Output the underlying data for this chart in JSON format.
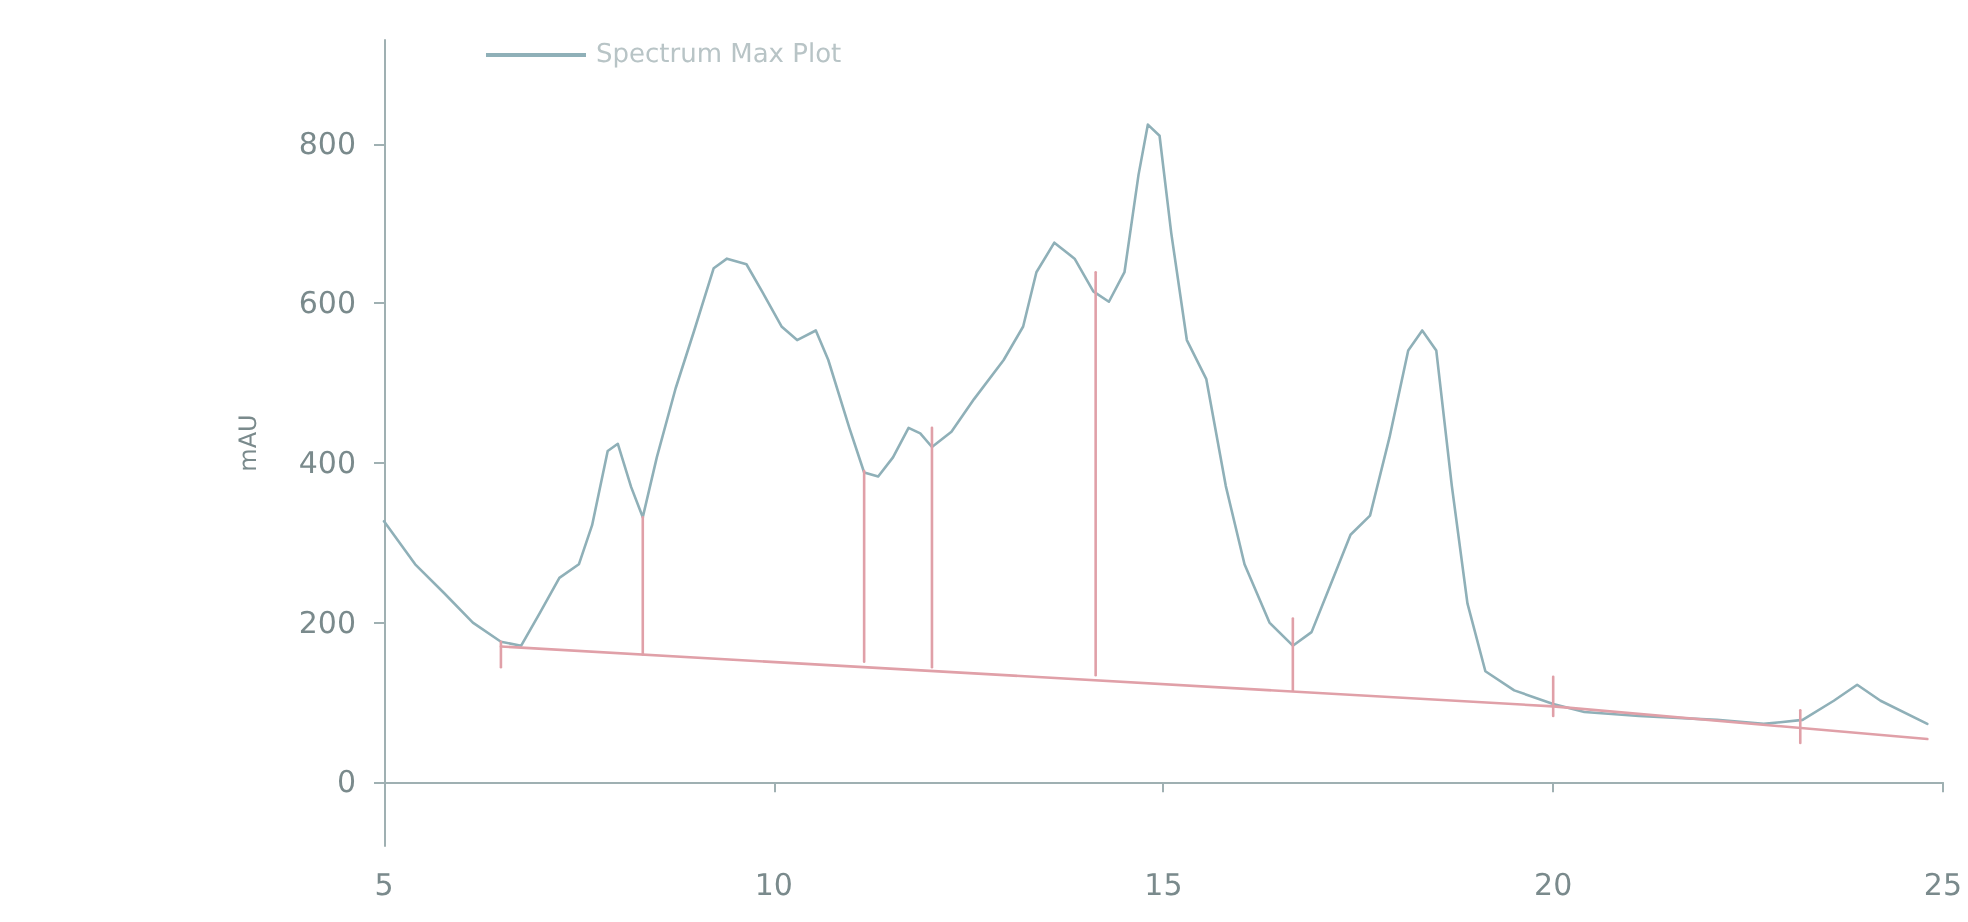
{
  "chart_data": {
    "type": "line",
    "ylabel": "mAU",
    "xlim": [
      5,
      25
    ],
    "xticks": [
      5,
      10,
      15,
      20,
      25
    ],
    "ylim": [
      -80,
      930
    ],
    "yticks": [
      0,
      200,
      400,
      600,
      800
    ],
    "legend": "top",
    "marker": "none",
    "line_style": "solid",
    "series": [
      {
        "name": "Spectrum Max Plot",
        "color": "#8fb0b8",
        "x": [
          5.0,
          5.4,
          5.77,
          6.14,
          6.5,
          6.76,
          7.0,
          7.25,
          7.5,
          7.67,
          7.87,
          8.0,
          8.17,
          8.32,
          8.5,
          8.74,
          8.98,
          9.23,
          9.4,
          9.65,
          9.85,
          10.1,
          10.3,
          10.54,
          10.7,
          10.97,
          11.16,
          11.34,
          11.53,
          11.73,
          11.88,
          12.03,
          12.28,
          12.57,
          12.95,
          13.2,
          13.37,
          13.6,
          13.86,
          14.1,
          14.3,
          14.5,
          14.68,
          14.8,
          14.95,
          15.1,
          15.3,
          15.55,
          15.8,
          16.04,
          16.36,
          16.66,
          16.9,
          17.15,
          17.4,
          17.65,
          17.9,
          18.14,
          18.32,
          18.5,
          18.7,
          18.9,
          19.13,
          19.5,
          20.0,
          20.4,
          21.1,
          22.1,
          22.7,
          23.2,
          23.6,
          23.9,
          24.2,
          24.8
        ],
        "values": [
          327,
          273,
          237,
          200,
          176,
          171,
          212,
          256,
          273,
          322,
          415,
          424,
          370,
          332,
          407,
          493,
          566,
          644,
          656,
          649,
          615,
          571,
          554,
          566,
          529,
          444,
          388,
          383,
          407,
          444,
          437,
          420,
          439,
          480,
          529,
          571,
          639,
          676,
          656,
          615,
          602,
          639,
          761,
          824,
          810,
          688,
          554,
          505,
          371,
          273,
          200,
          171,
          188,
          249,
          310,
          334,
          432,
          541,
          566,
          541,
          371,
          224,
          139,
          115,
          98,
          88,
          83,
          78,
          73,
          78,
          102,
          122,
          102,
          73
        ]
      },
      {
        "color": "#e0a0a8",
        "x": [
          6.5,
          20.0,
          24.8
        ],
        "values": [
          170,
          95,
          54
        ]
      },
      {
        "color": "#e0a0a8",
        "x": [
          6.5,
          6.5
        ],
        "values": [
          176,
          144
        ]
      },
      {
        "color": "#e0a0a8",
        "x": [
          8.32,
          8.32
        ],
        "values": [
          332,
          160
        ]
      },
      {
        "color": "#e0a0a8",
        "x": [
          11.16,
          11.16
        ],
        "values": [
          390,
          151
        ]
      },
      {
        "color": "#e0a0a8",
        "x": [
          12.03,
          12.03
        ],
        "values": [
          444,
          144
        ]
      },
      {
        "color": "#e0a0a8",
        "x": [
          14.13,
          14.13
        ],
        "values": [
          639,
          134
        ]
      },
      {
        "color": "#e0a0a8",
        "x": [
          16.66,
          16.66
        ],
        "values": [
          205,
          115
        ]
      },
      {
        "color": "#e0a0a8",
        "x": [
          20.0,
          20.0
        ],
        "values": [
          132,
          83
        ]
      },
      {
        "color": "#e0a0a8",
        "x": [
          23.17,
          23.17
        ],
        "values": [
          90,
          49
        ]
      }
    ]
  }
}
